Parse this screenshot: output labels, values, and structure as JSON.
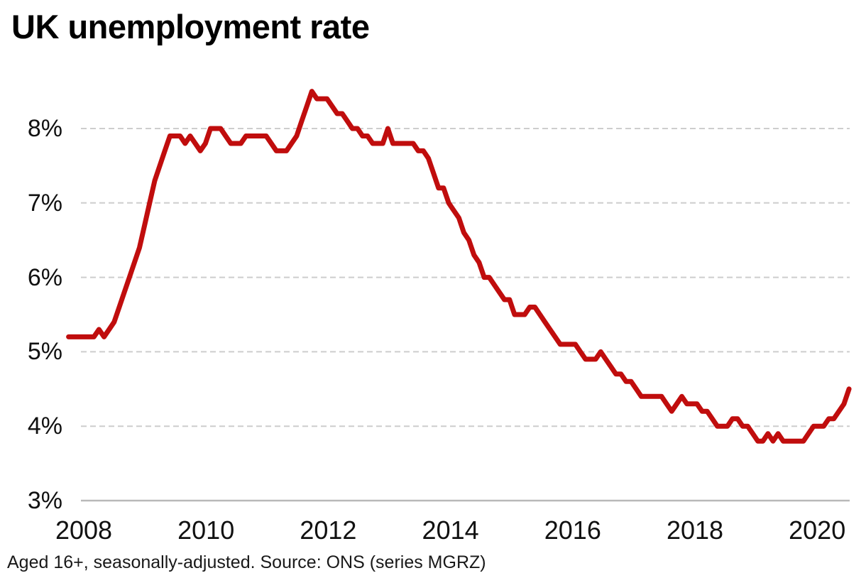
{
  "page": {
    "background_color": "#ffffff"
  },
  "chart": {
    "title": "UK unemployment rate",
    "footnote": "Aged 16+, seasonally-adjusted. Source: ONS (series MGRZ)"
  },
  "chart_data": {
    "type": "line",
    "title": "UK unemployment rate",
    "footnote": "Aged 16+, seasonally-adjusted. Source: ONS (series MGRZ)",
    "legend": "none",
    "grid": {
      "horizontal": true,
      "style": "dashed",
      "color": "#cdcdcd",
      "baseline_color": "#b9b9b9"
    },
    "x_axis": {
      "tick_labels": [
        "2008",
        "2010",
        "2012",
        "2014",
        "2016",
        "2018",
        "2020"
      ],
      "tick_years": [
        2008,
        2010,
        2012,
        2014,
        2016,
        2018,
        2020
      ],
      "frequency": "monthly",
      "range_start": "2007-10",
      "range_end": "2020-08"
    },
    "y_axis": {
      "tick_labels": [
        "8%",
        "7%",
        "6%",
        "5%",
        "4%",
        "3%"
      ],
      "tick_values": [
        8,
        7,
        6,
        5,
        4,
        3
      ],
      "unit": "percent",
      "ylim": [
        3,
        8.8
      ]
    },
    "series": [
      {
        "name": "UK unemployment rate, aged 16+, seasonally adjusted (ONS series MGRZ)",
        "color": "#c00d0d",
        "start": "2007-10",
        "points_per_year": 12,
        "values": [
          5.2,
          5.2,
          5.2,
          5.2,
          5.2,
          5.2,
          5.3,
          5.2,
          5.3,
          5.4,
          5.6,
          5.8,
          6.0,
          6.2,
          6.4,
          6.7,
          7.0,
          7.3,
          7.5,
          7.7,
          7.9,
          7.9,
          7.9,
          7.8,
          7.9,
          7.8,
          7.7,
          7.8,
          8.0,
          8.0,
          8.0,
          7.9,
          7.8,
          7.8,
          7.8,
          7.9,
          7.9,
          7.9,
          7.9,
          7.9,
          7.8,
          7.7,
          7.7,
          7.7,
          7.8,
          7.9,
          8.1,
          8.3,
          8.5,
          8.4,
          8.4,
          8.4,
          8.3,
          8.2,
          8.2,
          8.1,
          8.0,
          8.0,
          7.9,
          7.9,
          7.8,
          7.8,
          7.8,
          8.0,
          7.8,
          7.8,
          7.8,
          7.8,
          7.8,
          7.7,
          7.7,
          7.6,
          7.4,
          7.2,
          7.2,
          7.0,
          6.9,
          6.8,
          6.6,
          6.5,
          6.3,
          6.2,
          6.0,
          6.0,
          5.9,
          5.8,
          5.7,
          5.7,
          5.5,
          5.5,
          5.5,
          5.6,
          5.6,
          5.5,
          5.4,
          5.3,
          5.2,
          5.1,
          5.1,
          5.1,
          5.1,
          5.0,
          4.9,
          4.9,
          4.9,
          5.0,
          4.9,
          4.8,
          4.7,
          4.7,
          4.6,
          4.6,
          4.5,
          4.4,
          4.4,
          4.4,
          4.4,
          4.4,
          4.3,
          4.2,
          4.3,
          4.4,
          4.3,
          4.3,
          4.3,
          4.2,
          4.2,
          4.1,
          4.0,
          4.0,
          4.0,
          4.1,
          4.1,
          4.0,
          4.0,
          3.9,
          3.8,
          3.8,
          3.9,
          3.8,
          3.9,
          3.8,
          3.8,
          3.8,
          3.8,
          3.8,
          3.9,
          4.0,
          4.0,
          4.0,
          4.1,
          4.1,
          4.2,
          4.3,
          4.5
        ]
      }
    ]
  }
}
